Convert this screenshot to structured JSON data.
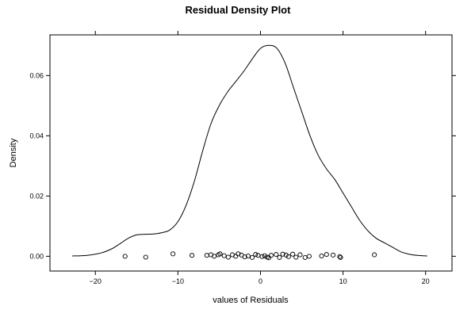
{
  "chart_data": {
    "type": "line",
    "title": "Residual Density Plot",
    "xlabel": "values of Residuals",
    "ylabel": "Density",
    "xlim": [
      -25.5,
      23.2
    ],
    "ylim": [
      -0.0049,
      0.0735
    ],
    "x_ticks": [
      -20,
      -10,
      0,
      10,
      20
    ],
    "x_tick_labels": [
      "−20",
      "−10",
      "0",
      "10",
      "20"
    ],
    "y_ticks": [
      0.0,
      0.02,
      0.04,
      0.06
    ],
    "y_tick_labels": [
      "0.00",
      "0.02",
      "0.04",
      "0.06"
    ],
    "grid": false,
    "series": [
      {
        "kind": "density_curve",
        "x": [
          -22.8,
          -21,
          -19.2,
          -18,
          -17,
          -16,
          -15,
          -14,
          -13,
          -12,
          -11,
          -10,
          -9,
          -8,
          -7,
          -6,
          -5,
          -4,
          -3,
          -2,
          -1,
          0,
          1,
          2,
          3,
          4,
          5,
          6,
          7,
          8,
          9,
          10,
          11,
          12,
          13,
          14,
          15,
          16,
          17,
          18,
          19,
          20.2
        ],
        "y": [
          0.0001,
          0.0003,
          0.0012,
          0.0025,
          0.0042,
          0.006,
          0.0071,
          0.0073,
          0.0074,
          0.0078,
          0.0087,
          0.0115,
          0.017,
          0.025,
          0.035,
          0.044,
          0.05,
          0.0545,
          0.058,
          0.0615,
          0.0655,
          0.069,
          0.07,
          0.069,
          0.064,
          0.056,
          0.048,
          0.04,
          0.0335,
          0.029,
          0.0255,
          0.021,
          0.0165,
          0.012,
          0.0085,
          0.006,
          0.0045,
          0.003,
          0.0015,
          0.0007,
          0.0003,
          0.0001
        ]
      },
      {
        "kind": "rug_points",
        "x": [
          -16.4,
          -13.9,
          -10.6,
          -8.3,
          -6.5,
          -6.0,
          -5.6,
          -5.1,
          -4.9,
          -4.4,
          -3.9,
          -3.4,
          -3.0,
          -2.7,
          -2.3,
          -1.9,
          -1.5,
          -1.0,
          -0.6,
          -0.3,
          0.2,
          0.5,
          0.8,
          1.0,
          1.3,
          1.9,
          2.3,
          2.7,
          3.1,
          3.4,
          3.9,
          4.3,
          4.8,
          5.4,
          5.9,
          7.4,
          8.0,
          8.8,
          9.6,
          9.7,
          13.8
        ],
        "y": [
          0.0,
          -0.0003,
          0.0008,
          0.0003,
          0.0003,
          0.0005,
          0.0,
          0.0005,
          0.0008,
          0.0002,
          -0.0003,
          0.0005,
          0.0,
          0.0008,
          0.0004,
          -0.0002,
          0.0001,
          -0.0004,
          0.0006,
          0.0003,
          -0.0001,
          0.0002,
          -0.0003,
          -0.0005,
          0.0003,
          0.0006,
          -0.0004,
          0.0007,
          0.0004,
          -0.0001,
          0.0007,
          -0.0003,
          0.0005,
          -0.0004,
          0.0,
          0.0001,
          0.0006,
          0.0004,
          -0.0001,
          -0.0004,
          0.0005
        ]
      }
    ]
  }
}
